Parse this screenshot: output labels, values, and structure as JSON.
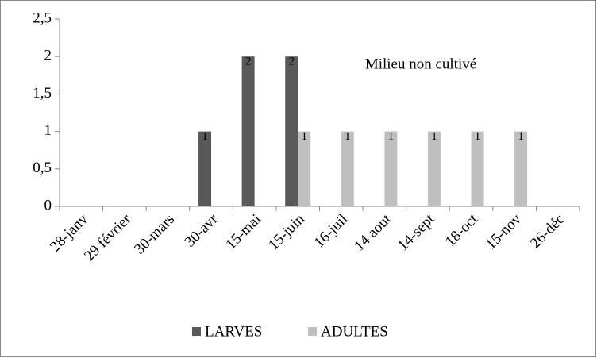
{
  "chart_data": {
    "type": "bar",
    "annotation": "Milieu non cultivé",
    "categories": [
      "28-janv",
      "29 février",
      "30-mars",
      "30-avr",
      "15-mai",
      "15-juin",
      "16-juil",
      "14 aout",
      "14-sept",
      "18-oct",
      "15-nov",
      "26-déc"
    ],
    "series": [
      {
        "name": "LARVES",
        "color": "#595959",
        "values": [
          0,
          0,
          0,
          1,
          2,
          2,
          0,
          0,
          0,
          0,
          0,
          0
        ]
      },
      {
        "name": "ADULTES",
        "color": "#bfbfbf",
        "values": [
          0,
          0,
          0,
          0,
          0,
          1,
          1,
          1,
          1,
          1,
          1,
          0
        ]
      }
    ],
    "ylim": [
      0,
      2.5
    ],
    "yticks": [
      0,
      {
        "value": 0.5,
        "label": "0,5"
      },
      1,
      {
        "value": 1.5,
        "label": "1,5"
      },
      2,
      {
        "value": 2.5,
        "label": "2,5"
      }
    ],
    "legend": "bottom"
  }
}
